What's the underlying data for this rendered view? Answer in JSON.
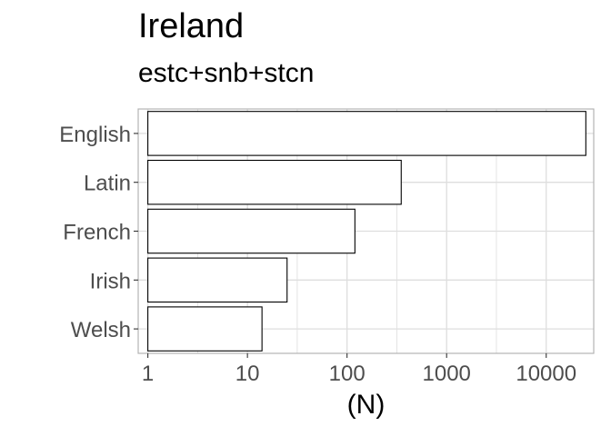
{
  "chart_data": {
    "type": "bar",
    "orientation": "horizontal",
    "title": "Ireland",
    "subtitle": "estc+snb+stcn",
    "xlabel": "(N)",
    "ylabel": "",
    "x_scale": "log10",
    "xlim": [
      0.8,
      30000
    ],
    "x_ticks": [
      1,
      10,
      100,
      1000,
      10000
    ],
    "x_tick_labels": [
      "1",
      "10",
      "100",
      "1000",
      "10000"
    ],
    "categories": [
      "English",
      "Latin",
      "French",
      "Irish",
      "Welsh"
    ],
    "values": [
      25000,
      350,
      120,
      25,
      14
    ],
    "grid": true,
    "legend": "none",
    "colors": {
      "bar_fill": "#ffffff",
      "bar_stroke": "#000000",
      "grid": "#dedede",
      "panel_border": "#b3b3b3",
      "tick_text": "#4d4d4d"
    }
  }
}
